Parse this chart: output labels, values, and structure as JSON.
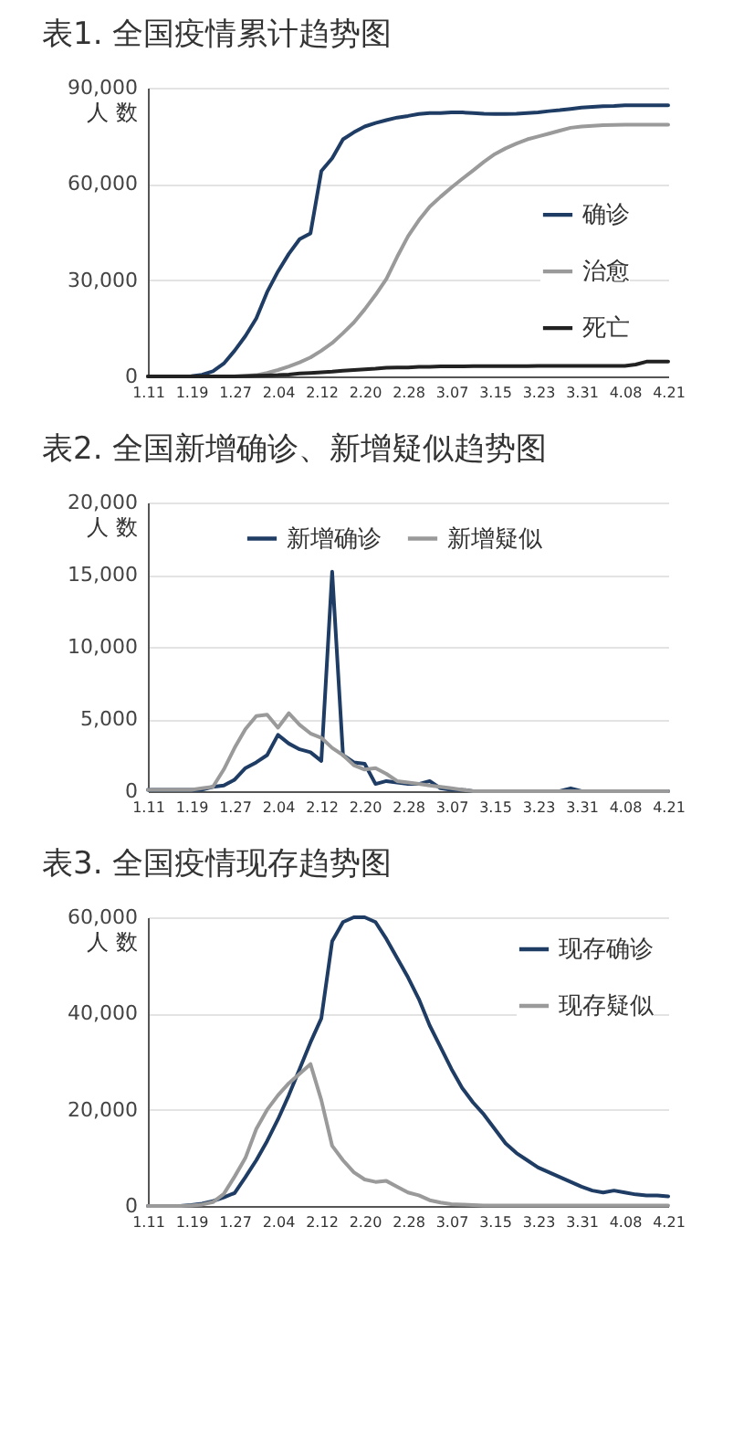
{
  "chart_data": [
    {
      "type": "line",
      "title": "表1. 全国疫情累计趋势图",
      "ylabel": "人 数",
      "categories": [
        "1.11",
        null,
        null,
        null,
        "1.19",
        null,
        null,
        null,
        "1.27",
        null,
        null,
        null,
        "2.04",
        null,
        null,
        null,
        "2.12",
        null,
        null,
        null,
        "2.20",
        null,
        null,
        null,
        "2.28",
        null,
        null,
        null,
        "3.07",
        null,
        null,
        null,
        "3.15",
        null,
        null,
        null,
        "3.23",
        null,
        null,
        null,
        "3.31",
        null,
        null,
        null,
        "4.08",
        null,
        null,
        null,
        "4.21"
      ],
      "ylim": [
        0,
        90000
      ],
      "yticks": [
        {
          "value": 0,
          "label": "0"
        },
        {
          "value": 30000,
          "label": "30,000"
        },
        {
          "value": 60000,
          "label": "60,000"
        },
        {
          "value": 90000,
          "label": "90,000"
        }
      ],
      "grid": "y",
      "legend": "right",
      "marker": "none",
      "line_style": "solid",
      "series": [
        {
          "name": "确诊",
          "color": "#1f3d64",
          "values": [
            0,
            0,
            0,
            0,
            100,
            500,
            1600,
            4000,
            8000,
            12600,
            18100,
            26300,
            32700,
            38200,
            42800,
            44600,
            64000,
            68000,
            73900,
            76100,
            77900,
            79000,
            79900,
            80700,
            81200,
            81800,
            82100,
            82100,
            82300,
            82300,
            82100,
            81900,
            81800,
            81800,
            81900,
            82100,
            82300,
            82700,
            83000,
            83400,
            83800,
            84000,
            84200,
            84300,
            84500,
            84500,
            84500,
            84500,
            84500
          ]
        },
        {
          "name": "治愈",
          "color": "#9a9a9a",
          "values": [
            0,
            0,
            0,
            0,
            0,
            0,
            0,
            0,
            0,
            200,
            400,
            1100,
            2000,
            3100,
            4400,
            5900,
            8000,
            10400,
            13500,
            16800,
            20900,
            25400,
            30400,
            37300,
            43700,
            48700,
            52900,
            56000,
            58900,
            61600,
            64200,
            66900,
            69300,
            71100,
            72600,
            73900,
            74800,
            75700,
            76600,
            77500,
            77900,
            78100,
            78300,
            78400,
            78500,
            78500,
            78500,
            78500,
            78500
          ]
        },
        {
          "name": "死亡",
          "color": "#222222",
          "values": [
            0,
            0,
            0,
            0,
            0,
            0,
            0,
            0,
            0,
            100,
            200,
            300,
            400,
            600,
            900,
            1100,
            1300,
            1500,
            1800,
            2000,
            2200,
            2400,
            2700,
            2800,
            2800,
            3000,
            3000,
            3100,
            3100,
            3100,
            3200,
            3200,
            3200,
            3200,
            3200,
            3200,
            3300,
            3300,
            3300,
            3300,
            3300,
            3300,
            3300,
            3300,
            3300,
            3700,
            4600,
            4600,
            4600
          ]
        }
      ]
    },
    {
      "type": "line",
      "title": "表2. 全国新增确诊、新增疑似趋势图",
      "ylabel": "人 数",
      "categories": [
        "1.11",
        null,
        null,
        null,
        "1.19",
        null,
        null,
        null,
        "1.27",
        null,
        null,
        null,
        "2.04",
        null,
        null,
        null,
        "2.12",
        null,
        null,
        null,
        "2.20",
        null,
        null,
        null,
        "2.28",
        null,
        null,
        null,
        "3.07",
        null,
        null,
        null,
        "3.15",
        null,
        null,
        null,
        "3.23",
        null,
        null,
        null,
        "3.31",
        null,
        null,
        null,
        "4.08",
        null,
        null,
        null,
        "4.21"
      ],
      "ylim": [
        0,
        20000
      ],
      "yticks": [
        {
          "value": 0,
          "label": "0"
        },
        {
          "value": 5000,
          "label": "5,000"
        },
        {
          "value": 10000,
          "label": "10,000"
        },
        {
          "value": 15000,
          "label": "15,000"
        },
        {
          "value": 20000,
          "label": "20,000"
        }
      ],
      "grid": "y",
      "legend": "top",
      "marker": "none",
      "line_style": "solid",
      "series": [
        {
          "name": "新增确诊",
          "color": "#1f3d64",
          "values": [
            100,
            100,
            100,
            100,
            100,
            100,
            300,
            400,
            800,
            1600,
            2000,
            2500,
            3900,
            3300,
            2900,
            2700,
            2100,
            15200,
            2500,
            2000,
            1900,
            500,
            700,
            600,
            500,
            500,
            700,
            200,
            100,
            100,
            0,
            0,
            0,
            0,
            0,
            0,
            0,
            0,
            0,
            200,
            0,
            0,
            0,
            0,
            0,
            0,
            0,
            0,
            0
          ]
        },
        {
          "name": "新增疑似",
          "color": "#9a9a9a",
          "values": [
            100,
            100,
            100,
            100,
            100,
            200,
            300,
            1500,
            3000,
            4300,
            5200,
            5300,
            4400,
            5400,
            4600,
            4000,
            3700,
            3000,
            2500,
            1800,
            1500,
            1600,
            1200,
            700,
            600,
            500,
            400,
            300,
            200,
            100,
            0,
            0,
            0,
            0,
            0,
            0,
            0,
            0,
            0,
            0,
            0,
            0,
            0,
            0,
            0,
            0,
            0,
            0,
            0
          ]
        }
      ]
    },
    {
      "type": "line",
      "title": "表3. 全国疫情现存趋势图",
      "ylabel": "人 数",
      "categories": [
        "1.11",
        null,
        null,
        null,
        "1.19",
        null,
        null,
        null,
        "1.27",
        null,
        null,
        null,
        "2.04",
        null,
        null,
        null,
        "2.12",
        null,
        null,
        null,
        "2.20",
        null,
        null,
        null,
        "2.28",
        null,
        null,
        null,
        "3.07",
        null,
        null,
        null,
        "3.15",
        null,
        null,
        null,
        "3.23",
        null,
        null,
        null,
        "3.31",
        null,
        null,
        null,
        "4.08",
        null,
        null,
        null,
        "4.21"
      ],
      "ylim": [
        0,
        60000
      ],
      "yticks": [
        {
          "value": 0,
          "label": "0"
        },
        {
          "value": 20000,
          "label": "20,000"
        },
        {
          "value": 40000,
          "label": "40,000"
        },
        {
          "value": 60000,
          "label": "60,000"
        }
      ],
      "grid": "y",
      "legend": "top right",
      "marker": "none",
      "line_style": "solid",
      "series": [
        {
          "name": "现存确诊",
          "color": "#1f3d64",
          "values": [
            0,
            0,
            0,
            0,
            200,
            500,
            1000,
            1800,
            2700,
            6000,
            9500,
            13500,
            18000,
            23000,
            28500,
            34000,
            39000,
            55000,
            59000,
            60000,
            60000,
            59000,
            55500,
            51500,
            47500,
            43000,
            37500,
            33000,
            28500,
            24500,
            21500,
            19000,
            16000,
            13000,
            11000,
            9500,
            8000,
            7000,
            6000,
            5000,
            4000,
            3200,
            2800,
            3200,
            2800,
            2400,
            2200,
            2200,
            2000
          ]
        },
        {
          "name": "现存疑似",
          "color": "#9a9a9a",
          "values": [
            0,
            0,
            0,
            0,
            100,
            300,
            800,
            2500,
            6100,
            10000,
            16000,
            20000,
            23000,
            25500,
            27500,
            29500,
            22000,
            12500,
            9500,
            7000,
            5500,
            5000,
            5200,
            4000,
            2800,
            2200,
            1200,
            700,
            400,
            300,
            200,
            100,
            100,
            100,
            100,
            100,
            100,
            100,
            100,
            100,
            100,
            100,
            100,
            100,
            100,
            100,
            100,
            100,
            100
          ]
        }
      ]
    }
  ]
}
